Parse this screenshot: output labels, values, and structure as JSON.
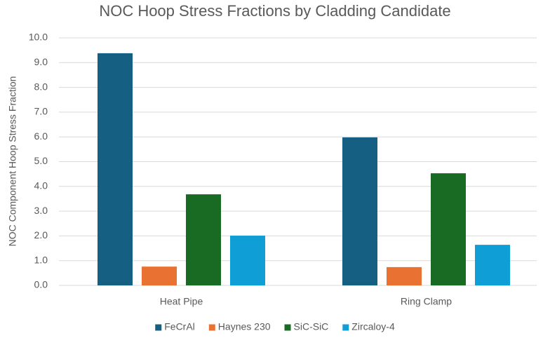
{
  "chart_data": {
    "type": "bar",
    "title": "NOC Hoop Stress Fractions by Cladding Candidate",
    "y_label": "NOC Component Hoop Stress Fraction",
    "categories": [
      "Heat Pipe",
      "Ring Clamp"
    ],
    "series": [
      {
        "name": "FeCrAl",
        "color": "#156082",
        "values": [
          9.38,
          5.98
        ]
      },
      {
        "name": "Haynes 230",
        "color": "#e97132",
        "values": [
          0.76,
          0.74
        ]
      },
      {
        "name": "SiC-SiC",
        "color": "#196b24",
        "values": [
          3.68,
          4.53
        ]
      },
      {
        "name": "Zircaloy-4",
        "color": "#0f9ed5",
        "values": [
          2.01,
          1.64
        ]
      }
    ],
    "ylim": [
      0,
      10
    ],
    "yticks": [
      {
        "value": 0,
        "label": "0.0"
      },
      {
        "value": 1,
        "label": "1.0"
      },
      {
        "value": 2,
        "label": "2.0"
      },
      {
        "value": 3,
        "label": "3.0"
      },
      {
        "value": 4,
        "label": "4.0"
      },
      {
        "value": 5,
        "label": "5.0"
      },
      {
        "value": 6,
        "label": "6.0"
      },
      {
        "value": 7,
        "label": "7.0"
      },
      {
        "value": 8,
        "label": "8.0"
      },
      {
        "value": 9,
        "label": "9.0"
      },
      {
        "value": 10,
        "label": "10.0"
      }
    ],
    "grid": true,
    "legend": "bottom"
  }
}
